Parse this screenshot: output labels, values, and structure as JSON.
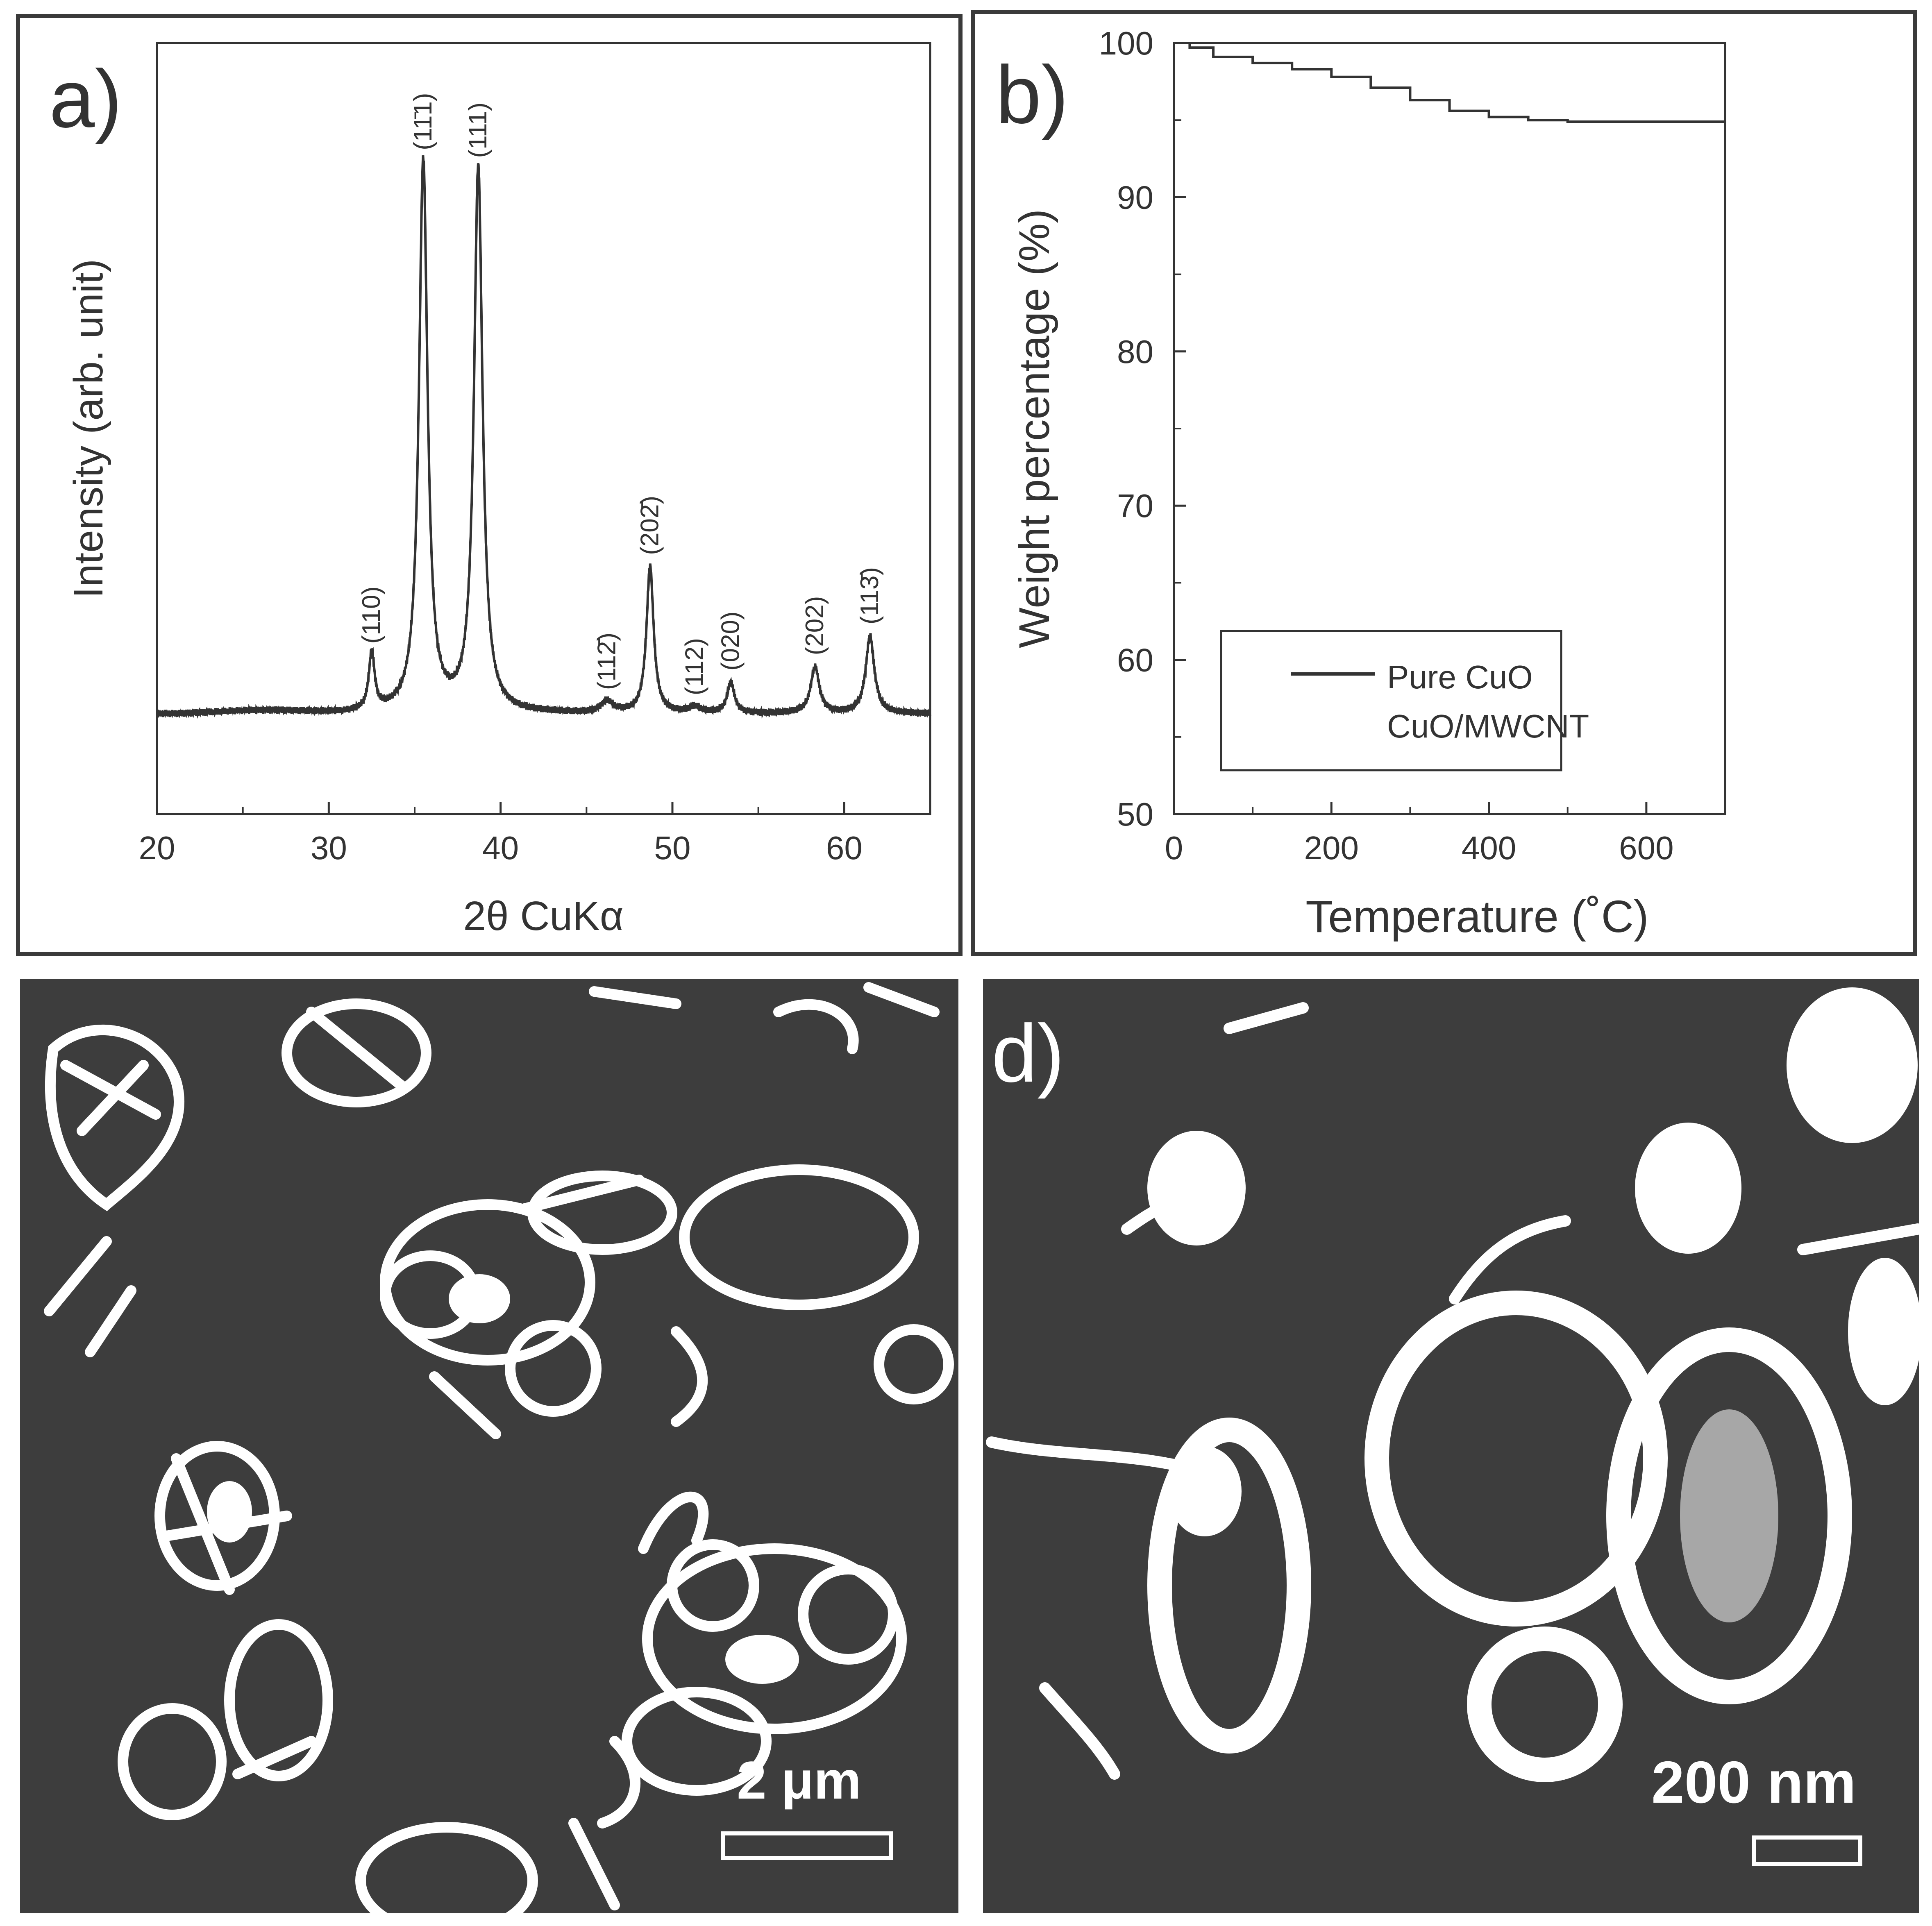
{
  "panels": {
    "a": {
      "label": "a)"
    },
    "b": {
      "label": "b)"
    },
    "c": {
      "label": "",
      "scale_bar": "2 μm"
    },
    "d": {
      "label": "d)",
      "scale_bar": "200 nm"
    }
  },
  "chart_data": [
    {
      "panel": "a",
      "type": "line",
      "xlabel": "2θ CuKα",
      "ylabel": "Intensity (arb. unit)",
      "xlim": [
        20,
        65
      ],
      "ylim": [
        0,
        100
      ],
      "xticks": [
        20,
        30,
        40,
        50,
        60
      ],
      "baseline": 13,
      "noise": 0.5,
      "peaks": [
        {
          "pos": 32.5,
          "height": 7.5,
          "width": 0.2,
          "label": "(110)"
        },
        {
          "pos": 35.5,
          "height": 71.5,
          "width": 0.3,
          "label": "(11̄1)"
        },
        {
          "pos": 38.7,
          "height": 70.5,
          "width": 0.3,
          "label": "(111)"
        },
        {
          "pos": 46.2,
          "height": 1.5,
          "width": 0.4,
          "label": "(112̄)"
        },
        {
          "pos": 48.7,
          "height": 19,
          "width": 0.25,
          "label": "(202̄)"
        },
        {
          "pos": 51.3,
          "height": 0.8,
          "width": 0.4,
          "label": "(112)"
        },
        {
          "pos": 53.4,
          "height": 4,
          "width": 0.25,
          "label": "(020)"
        },
        {
          "pos": 58.3,
          "height": 6,
          "width": 0.3,
          "label": "(202)"
        },
        {
          "pos": 61.5,
          "height": 10,
          "width": 0.3,
          "label": "(113̄)"
        }
      ]
    },
    {
      "panel": "b",
      "type": "line",
      "xlabel": "Temperature (˚C)",
      "ylabel": "Weight percentage (%)",
      "xlim": [
        0,
        700
      ],
      "ylim": [
        50,
        100
      ],
      "xticks": [
        0,
        200,
        400,
        600
      ],
      "yticks": [
        50,
        60,
        70,
        80,
        90,
        100
      ],
      "legend": {
        "position": "lower-left"
      },
      "series": [
        {
          "name": "Pure CuO",
          "x": [
            0,
            20,
            50,
            100,
            150,
            200,
            250,
            300,
            350,
            400,
            450,
            500,
            550,
            600,
            650,
            700
          ],
          "y": [
            100,
            99.7,
            99.1,
            98.7,
            98.3,
            97.8,
            97.1,
            96.3,
            95.6,
            95.2,
            95.0,
            94.9,
            94.9,
            94.9,
            94.9,
            95.0
          ]
        },
        {
          "name": "CuO/MWCNT",
          "x": [],
          "y": []
        }
      ]
    }
  ]
}
